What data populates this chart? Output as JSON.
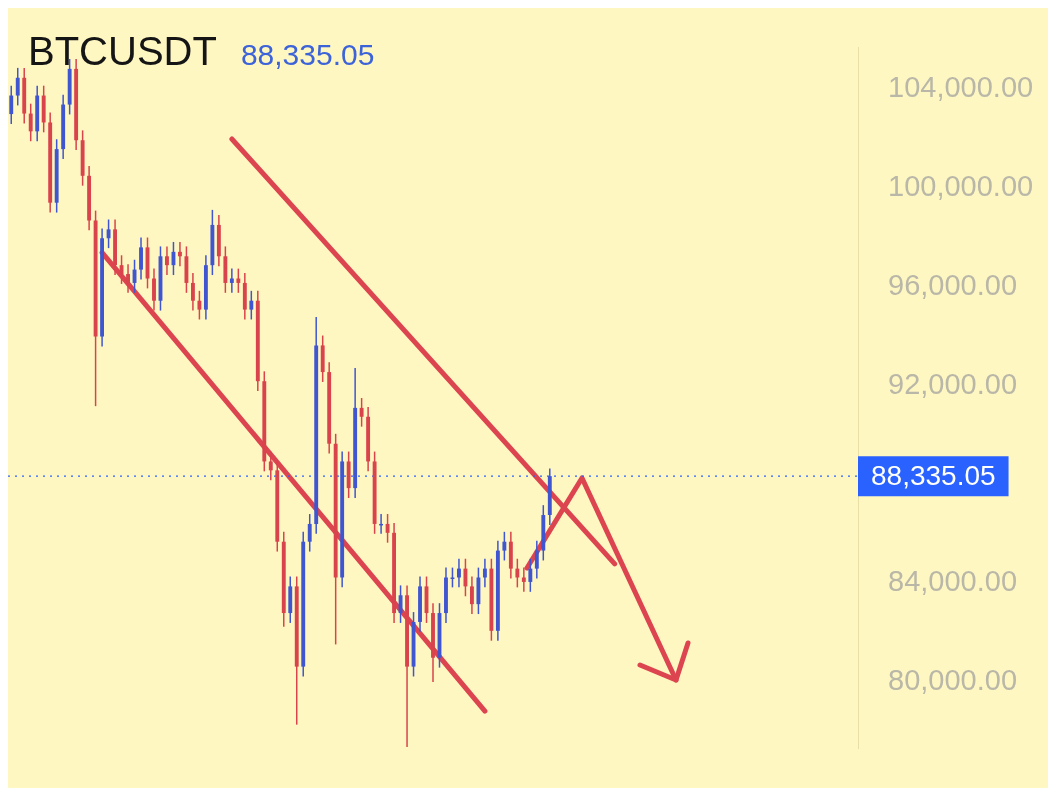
{
  "chart_data": {
    "type": "candlestick",
    "title": "BTCUSDT",
    "annotations": [
      "88,335.05"
    ],
    "categories": [
      null,
      null,
      null,
      null,
      null,
      null,
      null,
      null,
      null,
      null,
      null,
      null,
      null,
      null,
      null,
      null,
      null,
      null,
      null,
      null,
      null,
      null,
      null,
      null,
      null,
      null,
      null,
      null,
      null,
      null,
      null,
      null,
      null,
      null,
      null,
      null,
      null,
      null,
      null,
      null,
      null,
      null,
      null,
      null,
      null,
      null,
      null,
      null,
      null,
      null,
      null,
      null,
      null,
      null,
      null,
      null,
      null,
      null,
      null,
      null,
      null,
      null,
      null,
      null,
      null,
      null,
      null,
      null,
      null,
      null,
      null,
      null,
      null,
      null,
      null,
      null,
      null,
      null,
      null,
      null,
      null,
      null,
      null,
      null,
      null,
      null,
      null,
      null,
      null,
      null,
      null,
      null,
      null,
      null,
      null,
      null,
      null,
      null,
      null,
      null,
      null,
      null,
      null,
      null,
      null,
      null,
      null,
      null,
      null,
      null,
      null,
      null,
      null,
      null,
      null,
      null,
      null,
      null,
      null,
      null,
      null,
      null,
      null,
      null,
      null,
      null,
      null,
      null,
      null,
      null,
      null
    ],
    "ohlc": [
      [
        103000,
        104150,
        102600,
        103750
      ],
      [
        103750,
        104870,
        103350,
        104470
      ],
      [
        104470,
        104870,
        102620,
        103020
      ],
      [
        103020,
        103420,
        101900,
        102300
      ],
      [
        102300,
        104150,
        101900,
        103750
      ],
      [
        103750,
        104150,
        102260,
        102660
      ],
      [
        102660,
        103060,
        99010,
        99410
      ],
      [
        99410,
        101980,
        99010,
        101580
      ],
      [
        101580,
        103785,
        101180,
        103385
      ],
      [
        103385,
        105230,
        102985,
        104830
      ],
      [
        104830,
        105230,
        101540,
        101940
      ],
      [
        101940,
        102340,
        100100,
        100500
      ],
      [
        100500,
        100900,
        98290,
        98690
      ],
      [
        98690,
        99090,
        91170,
        93990
      ],
      [
        93990,
        98370,
        93590,
        97970
      ],
      [
        97970,
        98730,
        97570,
        98330
      ],
      [
        98330,
        98730,
        96480,
        96880
      ],
      [
        96880,
        97280,
        96120,
        96520
      ],
      [
        96520,
        96920,
        95760,
        96160
      ],
      [
        96160,
        97100,
        95760,
        96700
      ],
      [
        96700,
        98000,
        96300,
        97600
      ],
      [
        97600,
        98000,
        95940,
        96340
      ],
      [
        96340,
        96740,
        95040,
        95440
      ],
      [
        95440,
        97640,
        95040,
        97240
      ],
      [
        97240,
        97640,
        96480,
        96880
      ],
      [
        96880,
        97820,
        96480,
        97420
      ],
      [
        97420,
        97820,
        96840,
        97240
      ],
      [
        97240,
        97640,
        95760,
        96160
      ],
      [
        96160,
        96560,
        95040,
        95440
      ],
      [
        95440,
        95840,
        94680,
        95080
      ],
      [
        95080,
        97280,
        94680,
        96880
      ],
      [
        96880,
        99120,
        96480,
        98510
      ],
      [
        98510,
        98910,
        96840,
        97240
      ],
      [
        97240,
        97640,
        95760,
        96160
      ],
      [
        96160,
        96740,
        95760,
        96340
      ],
      [
        96340,
        96740,
        95760,
        96160
      ],
      [
        96160,
        96560,
        94680,
        95080
      ],
      [
        95080,
        95840,
        94680,
        95440
      ],
      [
        95440,
        95840,
        91780,
        92180
      ],
      [
        92180,
        92580,
        88530,
        88930
      ],
      [
        88930,
        89330,
        88170,
        88570
      ],
      [
        88570,
        88970,
        85280,
        85680
      ],
      [
        85680,
        86080,
        82240,
        82790
      ],
      [
        82790,
        84270,
        82390,
        83870
      ],
      [
        83870,
        84270,
        78270,
        80620
      ],
      [
        80620,
        86080,
        80220,
        85680
      ],
      [
        85680,
        86800,
        85280,
        86400
      ],
      [
        86400,
        94780,
        86000,
        93630
      ],
      [
        93630,
        94030,
        92150,
        92550
      ],
      [
        92550,
        92950,
        89250,
        89650
      ],
      [
        89650,
        90050,
        81520,
        84230
      ],
      [
        84230,
        89330,
        83830,
        88930
      ],
      [
        88930,
        89330,
        87450,
        87850
      ],
      [
        87850,
        92720,
        87450,
        91100
      ],
      [
        91100,
        91500,
        90340,
        90740
      ],
      [
        90740,
        91140,
        88530,
        88930
      ],
      [
        88930,
        89330,
        86000,
        86400
      ],
      [
        86400,
        86800,
        86000,
        86400
      ],
      [
        86400,
        86800,
        85640,
        86040
      ],
      [
        86040,
        86440,
        82390,
        82790
      ],
      [
        82790,
        83910,
        82390,
        83510
      ],
      [
        83510,
        83910,
        77360,
        80620
      ],
      [
        80620,
        82830,
        80220,
        82430
      ],
      [
        82430,
        84270,
        82030,
        83870
      ],
      [
        83870,
        84270,
        82390,
        82790
      ],
      [
        82790,
        83190,
        80000,
        80980
      ],
      [
        80980,
        83190,
        80580,
        82790
      ],
      [
        82790,
        84630,
        82390,
        84230
      ],
      [
        84230,
        84630,
        83830,
        84230
      ],
      [
        84230,
        84990,
        83830,
        84590
      ],
      [
        84590,
        84990,
        83470,
        83870
      ],
      [
        83870,
        84270,
        82750,
        83150
      ],
      [
        83150,
        84630,
        82750,
        84230
      ],
      [
        84230,
        84990,
        83830,
        84590
      ],
      [
        84590,
        84990,
        81670,
        82070
      ],
      [
        82070,
        85720,
        81670,
        85320
      ],
      [
        85320,
        86080,
        84920,
        85680
      ],
      [
        85680,
        86080,
        84190,
        84590
      ],
      [
        84590,
        84990,
        83830,
        84230
      ],
      [
        84230,
        84630,
        83650,
        84050
      ],
      [
        84050,
        84990,
        83650,
        84590
      ],
      [
        84590,
        85720,
        84190,
        85320
      ],
      [
        85320,
        87160,
        84920,
        86760
      ],
      [
        86760,
        88640,
        86360,
        88335.05
      ],
      null,
      null,
      null,
      null,
      null,
      null,
      null,
      null,
      null,
      null,
      null,
      null,
      null,
      null,
      null,
      null,
      null,
      null,
      null,
      null,
      null,
      null,
      null,
      null,
      null,
      null,
      null,
      null,
      null,
      null,
      null,
      null,
      null,
      null,
      null,
      null,
      null,
      null,
      null,
      null,
      null,
      null,
      null,
      null,
      null,
      null,
      null
    ],
    "series": [
      {
        "type": "line",
        "color": "#dc4550",
        "values": [
          null,
          null,
          null,
          null,
          null,
          null,
          null,
          null,
          null,
          null,
          null,
          null,
          null,
          null,
          null,
          null,
          null,
          null,
          null,
          null,
          null,
          null,
          null,
          null,
          null,
          null,
          null,
          null,
          null,
          null,
          null,
          null,
          null,
          null,
          101990,
          null,
          null,
          null,
          null,
          null,
          null,
          null,
          null,
          null,
          null,
          null,
          null,
          null,
          null,
          null,
          null,
          null,
          null,
          null,
          null,
          null,
          null,
          null,
          null,
          null,
          null,
          null,
          null,
          null,
          null,
          null,
          null,
          null,
          null,
          null,
          null,
          null,
          null,
          null,
          null,
          null,
          null,
          null,
          null,
          null,
          null,
          null,
          null,
          null,
          null,
          null,
          null,
          null,
          null,
          null,
          null,
          null,
          null,
          84780,
          null,
          null,
          null,
          null,
          null,
          null,
          null,
          null,
          null,
          null,
          null,
          null,
          null,
          null,
          null,
          null,
          null,
          null,
          null,
          null,
          null,
          null,
          null,
          null,
          null,
          null,
          null,
          null,
          null,
          null,
          null,
          null,
          null,
          null,
          null,
          null,
          null
        ]
      },
      {
        "type": "line",
        "color": "#dc4550",
        "values": [
          null,
          null,
          null,
          null,
          null,
          null,
          null,
          null,
          null,
          null,
          null,
          null,
          null,
          null,
          97390,
          null,
          null,
          null,
          null,
          null,
          null,
          null,
          null,
          null,
          null,
          null,
          null,
          null,
          null,
          null,
          null,
          null,
          null,
          null,
          null,
          null,
          null,
          null,
          null,
          null,
          null,
          null,
          null,
          null,
          null,
          null,
          null,
          null,
          null,
          null,
          null,
          null,
          null,
          null,
          null,
          null,
          null,
          null,
          null,
          null,
          null,
          null,
          null,
          null,
          null,
          null,
          null,
          null,
          null,
          null,
          null,
          null,
          null,
          78820,
          null,
          null,
          null,
          null,
          null,
          null,
          null,
          null,
          null,
          null,
          null,
          null,
          null,
          null,
          null,
          null,
          null,
          null,
          null,
          null,
          null,
          null,
          null,
          null,
          null,
          null,
          null,
          null,
          null,
          null,
          null,
          null,
          null,
          null,
          null,
          null,
          null,
          null,
          null,
          null,
          null,
          null,
          null,
          null,
          null,
          null,
          null,
          null,
          null,
          null,
          null,
          null,
          null,
          null,
          null,
          null,
          null
        ]
      }
    ],
    "ylim": [
      77300,
      105700
    ],
    "yticks": [
      {
        "value": 80000,
        "label": "80,000.00"
      },
      {
        "value": 84000,
        "label": "84,000.00"
      },
      {
        "value": 92000,
        "label": "92,000.00"
      },
      {
        "value": 96000,
        "label": "96,000.00"
      },
      {
        "value": 100000,
        "label": "100,000.00"
      },
      {
        "value": 104000,
        "label": "104,000.00"
      }
    ],
    "ref_lines": [
      {
        "axis": "y",
        "value": 88335.05,
        "label": "88,335.05",
        "color": "#2962ff",
        "line_style": "dotted"
      }
    ],
    "tick_labels": "y"
  }
}
